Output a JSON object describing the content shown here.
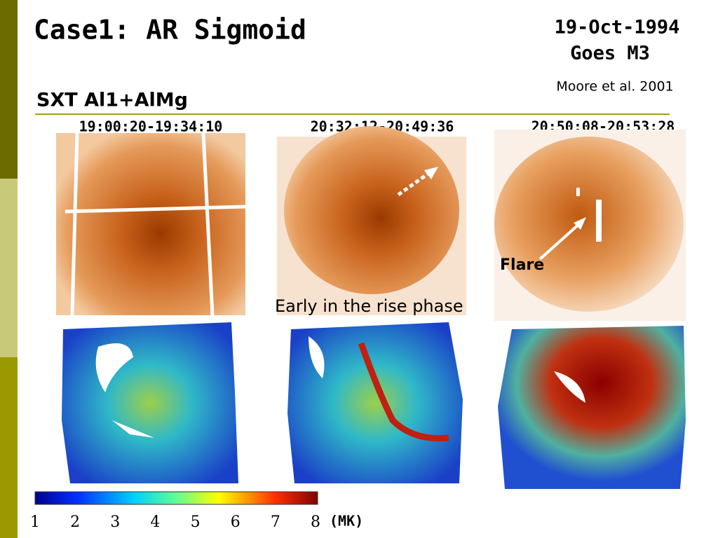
{
  "title": "Case1: AR Sigmoid",
  "event": {
    "date": "19-Oct-1994",
    "class": "Goes M3",
    "reference": "Moore et al. 2001"
  },
  "instrument": "SXT Al1+AlMg",
  "panels": [
    {
      "time": "19:00:20-19:34:10"
    },
    {
      "time": "20:32:12-20:49:36"
    },
    {
      "time": "20:50:08-20:53:28"
    }
  ],
  "annotations": {
    "flare": "Flare",
    "rise": "Early in the rise phase"
  },
  "colorbar": {
    "ticks": [
      1,
      2,
      3,
      4,
      5,
      6,
      7,
      8
    ],
    "unit": "(MK)"
  }
}
